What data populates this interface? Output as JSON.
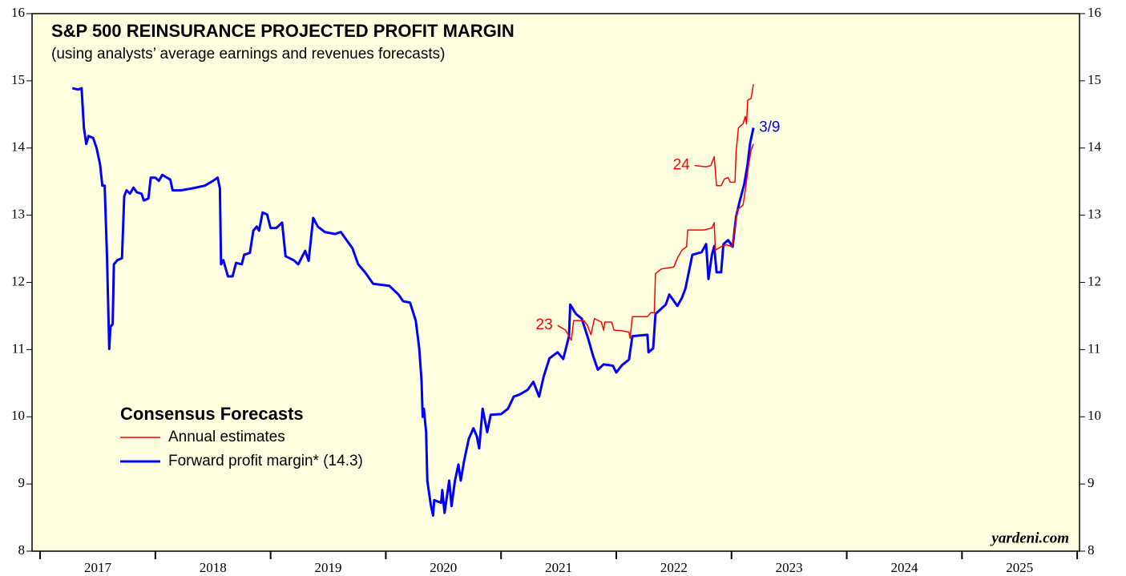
{
  "chart_data": {
    "type": "line",
    "title": "S&P 500 REINSURANCE PROJECTED PROFIT MARGIN",
    "subtitle": "(using analysts’ average earnings and revenues forecasts)",
    "source": "yardeni.com",
    "xlim": [
      2016.93,
      2026.02
    ],
    "xticks": [
      {
        "value": 2017.5,
        "label": "2017"
      },
      {
        "value": 2018.5,
        "label": "2018"
      },
      {
        "value": 2019.5,
        "label": "2019"
      },
      {
        "value": 2020.5,
        "label": "2020"
      },
      {
        "value": 2021.5,
        "label": "2021"
      },
      {
        "value": 2022.5,
        "label": "2022"
      },
      {
        "value": 2023.5,
        "label": "2023"
      },
      {
        "value": 2024.5,
        "label": "2024"
      },
      {
        "value": 2025.5,
        "label": "2025"
      }
    ],
    "ylim": [
      8,
      16
    ],
    "yticks": [
      8,
      9,
      10,
      11,
      12,
      13,
      14,
      15,
      16
    ],
    "legend": {
      "title": "Consensus Forecasts",
      "items": [
        {
          "label": "Annual estimates",
          "color": "#ff0000"
        },
        {
          "label": "Forward profit margin* (14.3)",
          "color": "#0000ff"
        }
      ]
    },
    "end_label": "3/9",
    "series": [
      {
        "name": "Forward profit margin* (14.3)",
        "color": "#0000ff",
        "width": 3,
        "x": [
          2017.28,
          2017.33,
          2017.36,
          2017.38,
          2017.4,
          2017.42,
          2017.46,
          2017.49,
          2017.52,
          2017.54,
          2017.56,
          2017.58,
          2017.6,
          2017.61,
          2017.63,
          2017.64,
          2017.67,
          2017.71,
          2017.73,
          2017.75,
          2017.78,
          2017.81,
          2017.84,
          2017.88,
          2017.9,
          2017.94,
          2017.96,
          2018.0,
          2018.03,
          2018.06,
          2018.08,
          2018.13,
          2018.15,
          2018.22,
          2018.32,
          2018.43,
          2018.5,
          2018.54,
          2018.56,
          2018.57,
          2018.59,
          2018.63,
          2018.67,
          2018.7,
          2018.75,
          2018.77,
          2018.82,
          2018.85,
          2018.88,
          2018.9,
          2018.93,
          2018.97,
          2019.0,
          2019.05,
          2019.1,
          2019.13,
          2019.2,
          2019.24,
          2019.3,
          2019.33,
          2019.37,
          2019.41,
          2019.47,
          2019.56,
          2019.61,
          2019.66,
          2019.71,
          2019.76,
          2019.82,
          2019.89,
          2020.03,
          2020.11,
          2020.15,
          2020.21,
          2020.26,
          2020.29,
          2020.31,
          2020.32,
          2020.33,
          2020.35,
          2020.36,
          2020.39,
          2020.41,
          2020.42,
          2020.48,
          2020.49,
          2020.51,
          2020.55,
          2020.57,
          2020.6,
          2020.63,
          2020.65,
          2020.68,
          2020.72,
          2020.76,
          2020.79,
          2020.81,
          2020.84,
          2020.88,
          2020.91,
          2021.0,
          2021.06,
          2021.11,
          2021.16,
          2021.23,
          2021.28,
          2021.33,
          2021.37,
          2021.42,
          2021.49,
          2021.54,
          2021.59,
          2021.6,
          2021.65,
          2021.7,
          2021.75,
          2021.8,
          2021.84,
          2021.89,
          2021.97,
          2022.0,
          2022.05,
          2022.11,
          2022.14,
          2022.27,
          2022.28,
          2022.32,
          2022.34,
          2022.43,
          2022.46,
          2022.53,
          2022.57,
          2022.6,
          2022.66,
          2022.74,
          2022.78,
          2022.8,
          2022.83,
          2022.85,
          2022.87,
          2022.91,
          2022.93,
          2022.97,
          2023.01,
          2023.04,
          2023.07,
          2023.11,
          2023.14,
          2023.16,
          2023.19
        ],
        "values": [
          14.89,
          14.87,
          14.89,
          14.3,
          14.06,
          14.18,
          14.15,
          14.0,
          13.76,
          13.44,
          13.44,
          12.39,
          11.01,
          11.34,
          11.38,
          12.27,
          12.33,
          12.36,
          13.28,
          13.37,
          13.32,
          13.41,
          13.34,
          13.32,
          13.22,
          13.25,
          13.56,
          13.56,
          13.51,
          13.6,
          13.58,
          13.53,
          13.37,
          13.37,
          13.4,
          13.44,
          13.51,
          13.56,
          13.4,
          12.27,
          12.33,
          12.09,
          12.09,
          12.29,
          12.27,
          12.41,
          12.44,
          12.77,
          12.83,
          12.77,
          13.04,
          13.01,
          12.81,
          12.81,
          12.89,
          12.39,
          12.33,
          12.27,
          12.47,
          12.32,
          12.96,
          12.83,
          12.75,
          12.72,
          12.75,
          12.63,
          12.51,
          12.27,
          12.15,
          11.98,
          11.95,
          11.82,
          11.72,
          11.7,
          11.43,
          11.02,
          10.54,
          10.0,
          10.12,
          9.77,
          9.05,
          8.69,
          8.53,
          8.76,
          8.72,
          8.91,
          8.57,
          9.05,
          8.67,
          9.05,
          9.29,
          9.05,
          9.35,
          9.67,
          9.83,
          9.71,
          9.53,
          10.12,
          9.77,
          10.03,
          10.04,
          10.12,
          10.3,
          10.33,
          10.4,
          10.52,
          10.3,
          10.6,
          10.87,
          10.96,
          10.86,
          11.2,
          11.67,
          11.53,
          11.46,
          11.2,
          10.9,
          10.7,
          10.78,
          10.76,
          10.66,
          10.77,
          10.85,
          11.2,
          11.22,
          10.96,
          11.02,
          11.53,
          11.67,
          11.82,
          11.65,
          11.77,
          11.91,
          12.41,
          12.45,
          12.57,
          12.05,
          12.41,
          12.54,
          12.15,
          12.15,
          12.57,
          12.63,
          12.53,
          12.98,
          13.2,
          13.46,
          13.76,
          14.06,
          14.3
        ]
      },
      {
        "name": "23",
        "color": "#ff0000",
        "width": 1.5,
        "x": [
          2021.49,
          2021.56,
          2021.61,
          2021.63,
          2021.72,
          2021.75,
          2021.78,
          2021.81,
          2021.87,
          2021.89,
          2021.9,
          2021.96,
          2021.98,
          2022.05,
          2022.11,
          2022.12,
          2022.14,
          2022.27,
          2022.3,
          2022.33,
          2022.34,
          2022.39,
          2022.5,
          2022.53,
          2022.57,
          2022.61,
          2022.62,
          2022.76,
          2022.83,
          2022.85,
          2022.86,
          2022.92,
          2022.96,
          2023.0,
          2023.01,
          2023.03,
          2023.05,
          2023.1,
          2023.12,
          2023.15,
          2023.17,
          2023.19
        ],
        "values": [
          11.36,
          11.29,
          11.14,
          11.43,
          11.43,
          11.36,
          11.22,
          11.46,
          11.41,
          11.29,
          11.41,
          11.41,
          11.29,
          11.28,
          11.26,
          11.17,
          11.49,
          11.49,
          11.55,
          11.55,
          12.13,
          12.2,
          12.23,
          12.36,
          12.48,
          12.53,
          12.78,
          12.78,
          12.81,
          12.89,
          12.48,
          12.54,
          12.56,
          12.53,
          12.57,
          12.81,
          13.08,
          13.15,
          13.37,
          13.76,
          13.97,
          14.06
        ]
      },
      {
        "name": "24",
        "color": "#ff0000",
        "width": 1.5,
        "x": [
          2022.68,
          2022.78,
          2022.82,
          2022.85,
          2022.87,
          2022.91,
          2022.94,
          2022.97,
          2022.99,
          2023.03,
          2023.04,
          2023.06,
          2023.1,
          2023.12,
          2023.13,
          2023.14,
          2023.17,
          2023.19
        ],
        "values": [
          13.74,
          13.72,
          13.74,
          13.87,
          13.44,
          13.44,
          13.54,
          13.56,
          13.49,
          13.49,
          13.94,
          14.3,
          14.36,
          14.47,
          14.36,
          14.71,
          14.74,
          14.95
        ]
      }
    ]
  }
}
